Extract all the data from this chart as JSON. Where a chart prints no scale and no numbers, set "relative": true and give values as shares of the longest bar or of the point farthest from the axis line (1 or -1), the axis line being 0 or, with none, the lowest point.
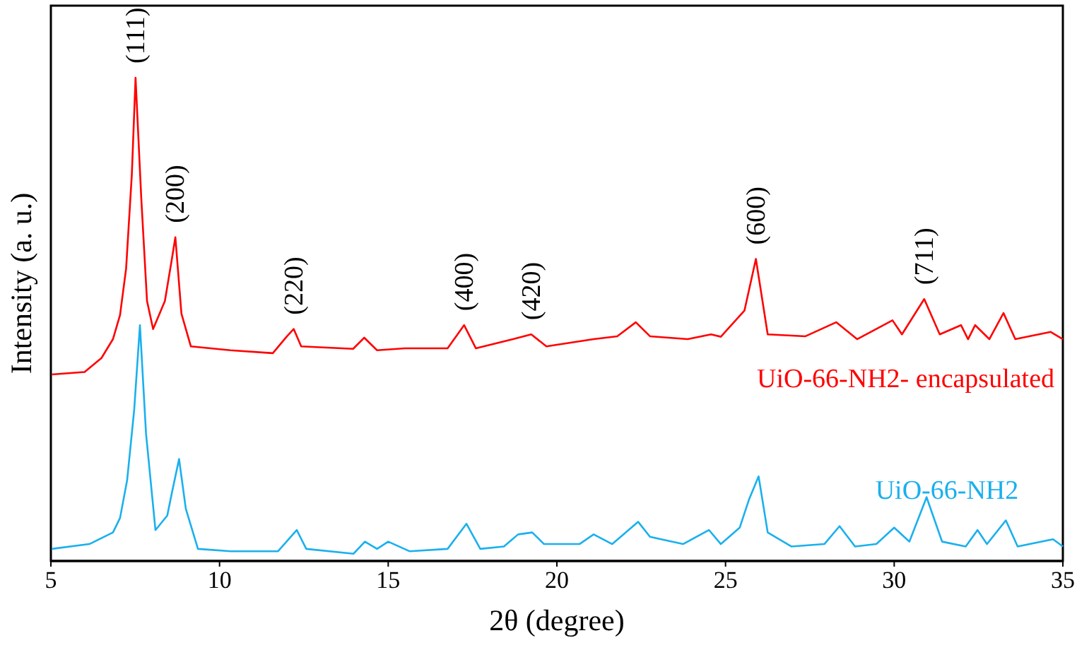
{
  "chart_data": {
    "type": "line",
    "relative": true,
    "xlabel": "2θ (degree)",
    "ylabel": "Intensity (a. u.)",
    "xlim": [
      5,
      35
    ],
    "xticks": [
      5,
      10,
      15,
      20,
      25,
      30,
      35
    ],
    "grid": false,
    "marker": "none",
    "line_style": "solid",
    "series": [
      {
        "name": "UiO-66-NH2- encapsulated",
        "color": "#ff0000",
        "x": [
          5.03,
          6.0,
          6.5,
          6.84,
          7.05,
          7.23,
          7.4,
          7.51,
          7.68,
          7.85,
          8.03,
          8.38,
          8.59,
          8.69,
          8.87,
          9.15,
          10.32,
          11.58,
          12.0,
          12.2,
          12.42,
          13.96,
          14.29,
          14.67,
          15.5,
          16.76,
          17.25,
          17.6,
          18.7,
          19.24,
          19.69,
          21.09,
          21.79,
          22.34,
          22.76,
          23.88,
          24.57,
          24.86,
          25.56,
          25.9,
          26.25,
          27.37,
          28.28,
          28.9,
          29.95,
          30.23,
          30.89,
          31.35,
          31.98,
          32.19,
          32.4,
          32.82,
          33.24,
          33.59,
          34.64,
          35
        ],
        "values": [
          0.386,
          0.391,
          0.42,
          0.459,
          0.509,
          0.605,
          0.8,
          1.0,
          0.75,
          0.538,
          0.48,
          0.538,
          0.626,
          0.67,
          0.512,
          0.444,
          0.436,
          0.43,
          0.465,
          0.48,
          0.444,
          0.439,
          0.462,
          0.436,
          0.44,
          0.44,
          0.488,
          0.44,
          0.459,
          0.469,
          0.444,
          0.459,
          0.465,
          0.494,
          0.465,
          0.459,
          0.469,
          0.464,
          0.518,
          0.625,
          0.469,
          0.465,
          0.494,
          0.459,
          0.498,
          0.469,
          0.542,
          0.469,
          0.488,
          0.459,
          0.488,
          0.459,
          0.513,
          0.459,
          0.474,
          0.459
        ]
      },
      {
        "name": "UiO-66-NH2",
        "color": "#1ab0ee",
        "x": [
          5.03,
          6.14,
          6.84,
          7.05,
          7.26,
          7.47,
          7.64,
          7.82,
          8.1,
          8.45,
          8.59,
          8.8,
          9.0,
          9.36,
          10.33,
          11.73,
          12.29,
          12.57,
          13.97,
          14.31,
          14.67,
          15.0,
          15.64,
          16.76,
          17.32,
          17.73,
          18.43,
          18.85,
          19.27,
          19.62,
          20.67,
          21.09,
          21.64,
          22.41,
          22.76,
          23.74,
          24.51,
          24.86,
          25.42,
          25.7,
          25.98,
          26.25,
          26.95,
          27.93,
          28.38,
          28.84,
          29.47,
          30.0,
          30.45,
          30.96,
          31.42,
          32.12,
          32.47,
          32.75,
          33.31,
          33.66,
          34.71,
          35
        ],
        "values": [
          0.025,
          0.035,
          0.059,
          0.089,
          0.167,
          0.313,
          0.488,
          0.264,
          0.064,
          0.094,
          0.142,
          0.211,
          0.108,
          0.025,
          0.02,
          0.02,
          0.064,
          0.025,
          0.015,
          0.04,
          0.025,
          0.04,
          0.02,
          0.025,
          0.077,
          0.025,
          0.03,
          0.055,
          0.059,
          0.035,
          0.035,
          0.055,
          0.035,
          0.081,
          0.05,
          0.035,
          0.064,
          0.035,
          0.069,
          0.128,
          0.175,
          0.059,
          0.03,
          0.035,
          0.072,
          0.03,
          0.035,
          0.069,
          0.04,
          0.132,
          0.04,
          0.03,
          0.064,
          0.035,
          0.084,
          0.03,
          0.045,
          0.03
        ]
      }
    ],
    "annotations": [
      {
        "text": "(111)",
        "x": 7.51,
        "y": 1.0
      },
      {
        "text": "(200)",
        "x": 8.69,
        "y": 0.67
      },
      {
        "text": "(220)",
        "x": 12.2,
        "y": 0.48
      },
      {
        "text": "(400)",
        "x": 17.25,
        "y": 0.488
      },
      {
        "text": "(420)",
        "x": 19.24,
        "y": 0.469
      },
      {
        "text": "(600)",
        "x": 25.9,
        "y": 0.625
      },
      {
        "text": "(711)",
        "x": 30.89,
        "y": 0.542
      }
    ]
  }
}
